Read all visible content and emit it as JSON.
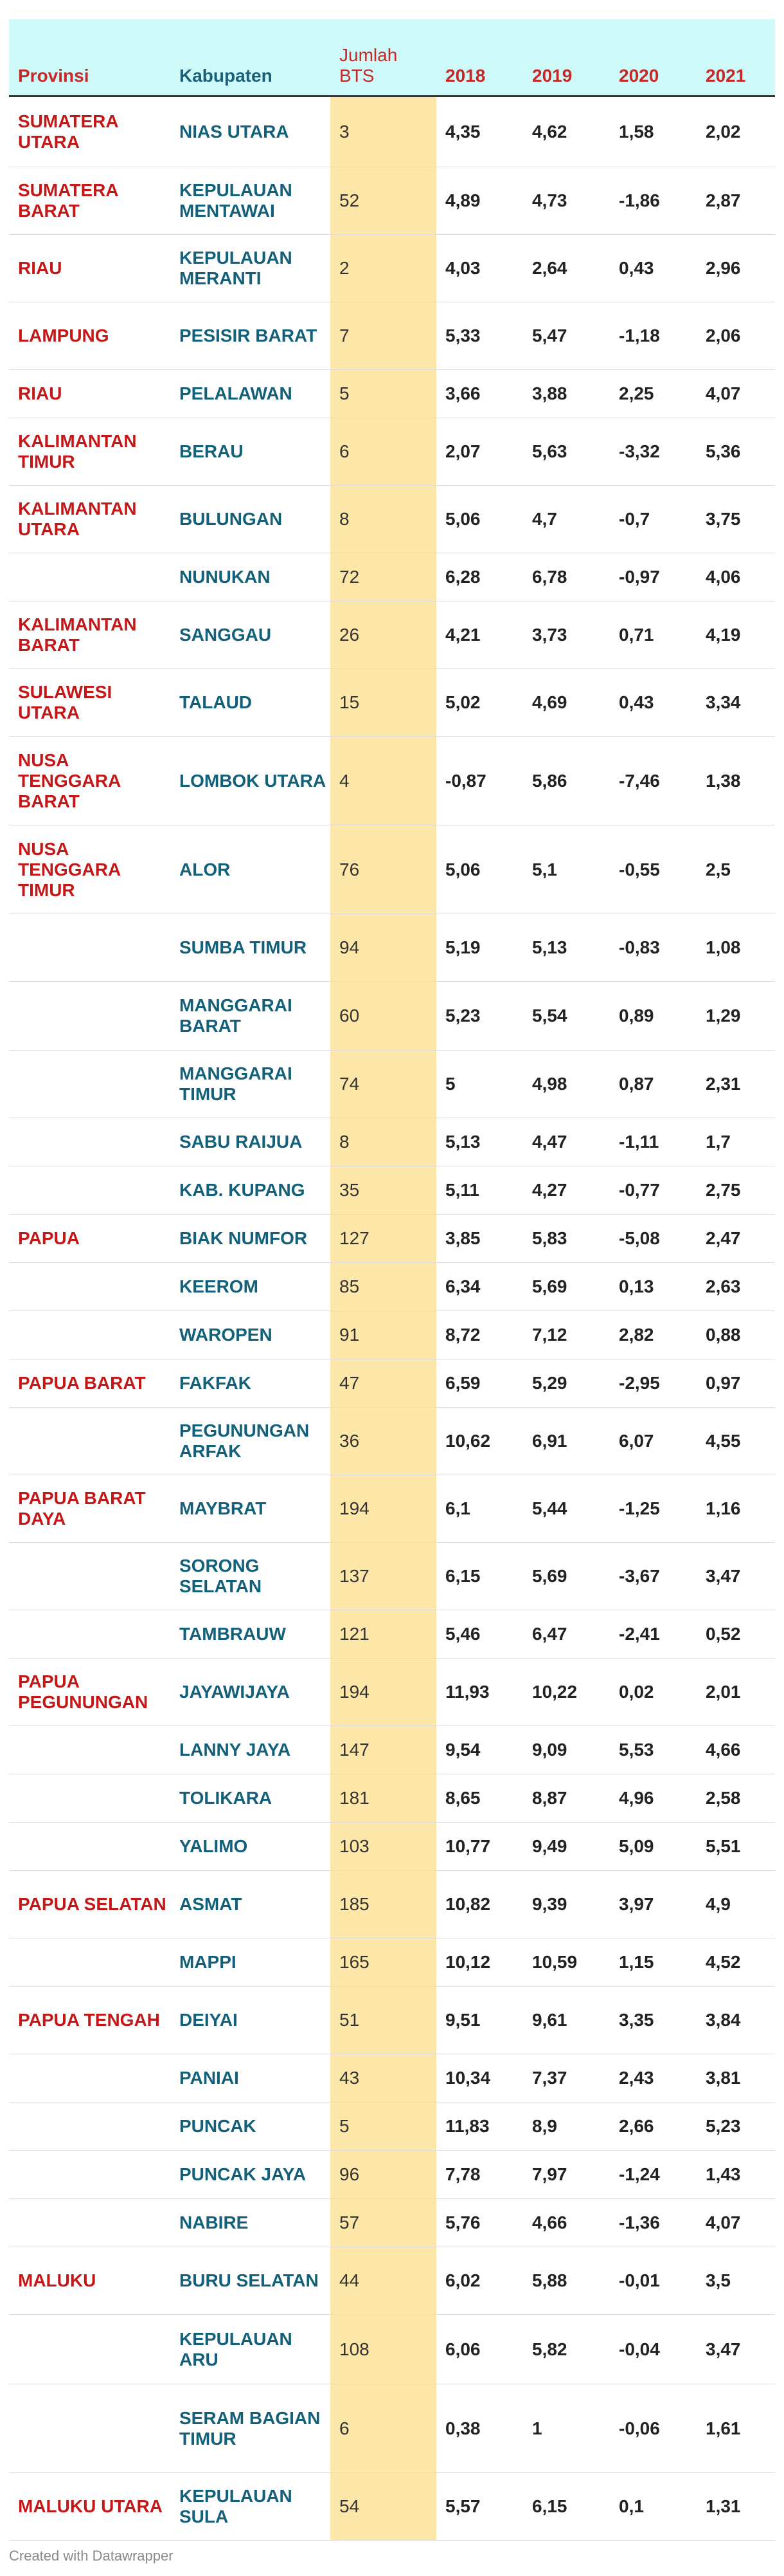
{
  "header": {
    "provinsi": "Provinsi",
    "kabupaten": "Kabupaten",
    "bts": "Jumlah BTS",
    "years": [
      "2018",
      "2019",
      "2020",
      "2021"
    ]
  },
  "footer": "Created with Datawrapper",
  "chart_data": {
    "type": "table",
    "columns": [
      "Provinsi",
      "Kabupaten",
      "Jumlah BTS",
      "2018",
      "2019",
      "2020",
      "2021"
    ],
    "rows": [
      [
        "SUMATERA UTARA",
        "NIAS UTARA",
        "3",
        "4,35",
        "4,62",
        "1,58",
        "2,02"
      ],
      [
        "SUMATERA BARAT",
        "KEPULAUAN MENTAWAI",
        "52",
        "4,89",
        "4,73",
        "-1,86",
        "2,87"
      ],
      [
        "RIAU",
        "KEPULAUAN MERANTI",
        "2",
        "4,03",
        "2,64",
        "0,43",
        "2,96"
      ],
      [
        "LAMPUNG",
        "PESISIR BARAT",
        "7",
        "5,33",
        "5,47",
        "-1,18",
        "2,06"
      ],
      [
        "RIAU",
        "PELALAWAN",
        "5",
        "3,66",
        "3,88",
        "2,25",
        "4,07"
      ],
      [
        "KALIMANTAN TIMUR",
        "BERAU",
        "6",
        "2,07",
        "5,63",
        "-3,32",
        "5,36"
      ],
      [
        "KALIMANTAN UTARA",
        "BULUNGAN",
        "8",
        "5,06",
        "4,7",
        "-0,7",
        "3,75"
      ],
      [
        "",
        "NUNUKAN",
        "72",
        "6,28",
        "6,78",
        "-0,97",
        "4,06"
      ],
      [
        "KALIMANTAN BARAT",
        "SANGGAU",
        "26",
        "4,21",
        "3,73",
        "0,71",
        "4,19"
      ],
      [
        "SULAWESI UTARA",
        "TALAUD",
        "15",
        "5,02",
        "4,69",
        "0,43",
        "3,34"
      ],
      [
        "NUSA TENGGARA BARAT",
        "LOMBOK UTARA",
        "4",
        "-0,87",
        "5,86",
        "-7,46",
        "1,38"
      ],
      [
        "NUSA TENGGARA TIMUR",
        "ALOR",
        "76",
        "5,06",
        "5,1",
        "-0,55",
        "2,5"
      ],
      [
        "",
        "SUMBA TIMUR",
        "94",
        "5,19",
        "5,13",
        "-0,83",
        "1,08"
      ],
      [
        "",
        "MANGGARAI BARAT",
        "60",
        "5,23",
        "5,54",
        "0,89",
        "1,29"
      ],
      [
        "",
        "MANGGARAI TIMUR",
        "74",
        "5",
        "4,98",
        "0,87",
        "2,31"
      ],
      [
        "",
        "SABU RAIJUA",
        "8",
        "5,13",
        "4,47",
        "-1,11",
        "1,7"
      ],
      [
        "",
        "KAB. KUPANG",
        "35",
        "5,11",
        "4,27",
        "-0,77",
        "2,75"
      ],
      [
        "PAPUA",
        "BIAK NUMFOR",
        "127",
        "3,85",
        "5,83",
        "-5,08",
        "2,47"
      ],
      [
        "",
        "KEEROM",
        "85",
        "6,34",
        "5,69",
        "0,13",
        "2,63"
      ],
      [
        "",
        "WAROPEN",
        "91",
        "8,72",
        "7,12",
        "2,82",
        "0,88"
      ],
      [
        "PAPUA BARAT",
        "FAKFAK",
        "47",
        "6,59",
        "5,29",
        "-2,95",
        "0,97"
      ],
      [
        "",
        "PEGUNUNGAN ARFAK",
        "36",
        "10,62",
        "6,91",
        "6,07",
        "4,55"
      ],
      [
        "PAPUA BARAT DAYA",
        "MAYBRAT",
        "194",
        "6,1",
        "5,44",
        "-1,25",
        "1,16"
      ],
      [
        "",
        "SORONG SELATAN",
        "137",
        "6,15",
        "5,69",
        "-3,67",
        "3,47"
      ],
      [
        "",
        "TAMBRAUW",
        "121",
        "5,46",
        "6,47",
        "-2,41",
        "0,52"
      ],
      [
        "PAPUA PEGUNUNGAN",
        "JAYAWIJAYA",
        "194",
        "11,93",
        "10,22",
        "0,02",
        "2,01"
      ],
      [
        "",
        "LANNY JAYA",
        "147",
        "9,54",
        "9,09",
        "5,53",
        "4,66"
      ],
      [
        "",
        "TOLIKARA",
        "181",
        "8,65",
        "8,87",
        "4,96",
        "2,58"
      ],
      [
        "",
        "YALIMO",
        "103",
        "10,77",
        "9,49",
        "5,09",
        "5,51"
      ],
      [
        "PAPUA SELATAN",
        "ASMAT",
        "185",
        "10,82",
        "9,39",
        "3,97",
        "4,9"
      ],
      [
        "",
        "MAPPI",
        "165",
        "10,12",
        "10,59",
        "1,15",
        "4,52"
      ],
      [
        "PAPUA TENGAH",
        "DEIYAI",
        "51",
        "9,51",
        "9,61",
        "3,35",
        "3,84"
      ],
      [
        "",
        "PANIAI",
        "43",
        "10,34",
        "7,37",
        "2,43",
        "3,81"
      ],
      [
        "",
        "PUNCAK",
        "5",
        "11,83",
        "8,9",
        "2,66",
        "5,23"
      ],
      [
        "",
        "PUNCAK JAYA",
        "96",
        "7,78",
        "7,97",
        "-1,24",
        "1,43"
      ],
      [
        "",
        "NABIRE",
        "57",
        "5,76",
        "4,66",
        "-1,36",
        "4,07"
      ],
      [
        "MALUKU",
        "BURU SELATAN",
        "44",
        "6,02",
        "5,88",
        "-0,01",
        "3,5"
      ],
      [
        "",
        "KEPULAUAN ARU",
        "108",
        "6,06",
        "5,82",
        "-0,04",
        "3,47"
      ],
      [
        "",
        "SERAM BAGIAN TIMUR",
        "6",
        "0,38",
        "1",
        "-0,06",
        "1,61"
      ],
      [
        "MALUKU UTARA",
        "KEPULAUAN SULA",
        "54",
        "5,57",
        "6,15",
        "0,1",
        "1,31"
      ]
    ]
  }
}
